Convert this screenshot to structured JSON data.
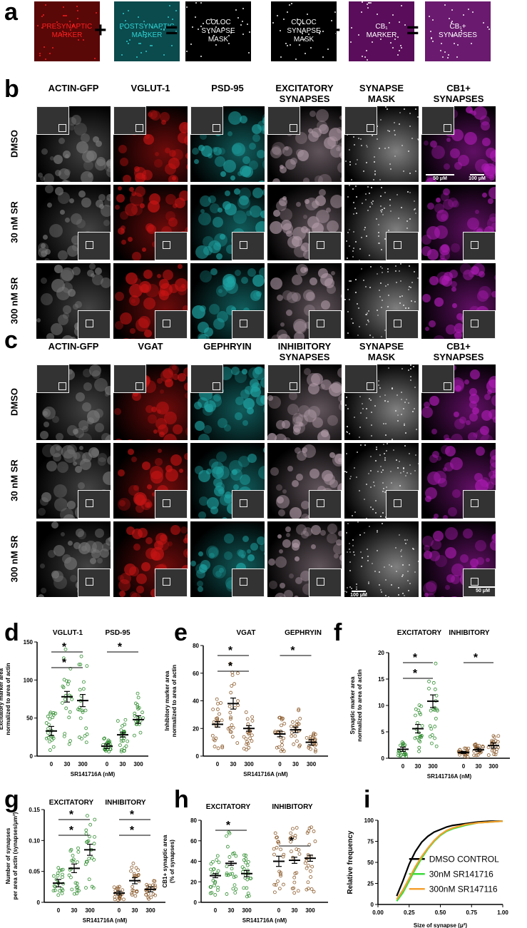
{
  "figure": {
    "panel_labels": {
      "a": "a",
      "b": "b",
      "c": "c",
      "d": "d",
      "e": "e",
      "f": "f",
      "g": "g",
      "h": "h",
      "i": "i"
    },
    "a": {
      "tiles": [
        {
          "text": "PRESYNAPTIC\nMARKER",
          "color": "#ff2020",
          "bg": "#5a0707"
        },
        {
          "text": "POSTSYNAPTIC\nMARKER",
          "color": "#2fd3d3",
          "bg": "#0b4a4d"
        },
        {
          "text": "COLOC\nSYNAPSE\nMASK",
          "color": "#ffffff",
          "bg": "#000000"
        },
        {
          "text": "COLOC\nSYNAPSE\nMASK",
          "color": "#ffffff",
          "bg": "#000000"
        },
        {
          "text": "CB₁\nMARKER",
          "color": "#ffffff",
          "bg": "#5a0d5a"
        },
        {
          "text": "CB₁+\nSYNAPSES",
          "color": "#ffffff",
          "bg": "#6a1a6f"
        }
      ],
      "ops": [
        "+",
        "=",
        "+",
        "="
      ]
    },
    "b": {
      "columns": [
        "ACTIN-GFP",
        "VGLUT-1",
        "PSD-95",
        "EXCITATORY\nSYNAPSES",
        "SYNAPSE\nMASK",
        "CB1+\nSYNAPSES"
      ],
      "rows": [
        "DMSO",
        "30 nM SR",
        "300 nM SR"
      ],
      "scale_50": "50 μM",
      "scale_100": "100 μM"
    },
    "c": {
      "columns": [
        "ACTIN-GFP",
        "VGAT",
        "GEPHRYIN",
        "INHIBITORY\nSYNAPSES",
        "SYNAPSE\nMASK",
        "CB1+\nSYNAPSES"
      ],
      "rows": [
        "DMSO",
        "30 nM SR",
        "300 nM SR"
      ],
      "scale_50": "50 μM",
      "scale_100": "100 μM"
    },
    "channel_colors": {
      "gray": "#7a7a7a",
      "red": "#c81414",
      "cyan": "#1fa5a5",
      "merge": "#b09aa6",
      "mask": "#e8e8e8",
      "magenta": "#b01cb7"
    }
  },
  "chart_data": [
    {
      "id": "d",
      "type": "scatter",
      "ylabel": "Excitatory marker area\nnormalized to area of actin",
      "xlabel": "SR141716A (nM)",
      "ylim": [
        0,
        150
      ],
      "yticks": [
        0,
        50,
        100,
        150
      ],
      "groups": [
        {
          "name": "VGLUT-1",
          "categories": [
            "0",
            "30",
            "300"
          ],
          "means": [
            33,
            78,
            73
          ],
          "sem": [
            6,
            7,
            8
          ],
          "color": "#2e8b2e"
        },
        {
          "name": "PSD-95",
          "categories": [
            "0",
            "30",
            "300"
          ],
          "means": [
            13,
            28,
            48
          ],
          "sem": [
            3,
            3,
            5
          ],
          "color": "#2e8b2e"
        }
      ],
      "significance": [
        "*",
        "*",
        "*"
      ]
    },
    {
      "id": "e",
      "type": "scatter",
      "ylabel": "Inhibitory marker area\nnormalized to area of actin",
      "xlabel": "SR141716A (nM)",
      "ylim": [
        0,
        80
      ],
      "yticks": [
        0,
        20,
        40,
        60,
        80
      ],
      "groups": [
        {
          "name": "VGAT",
          "categories": [
            "0",
            "30",
            "300"
          ],
          "means": [
            23,
            38,
            20
          ],
          "sem": [
            2,
            4,
            2
          ],
          "color": "#8b5a2b"
        },
        {
          "name": "GEPHRYIN",
          "categories": [
            "0",
            "30",
            "300"
          ],
          "means": [
            16,
            19,
            10
          ],
          "sem": [
            2,
            2,
            2
          ],
          "color": "#8b5a2b"
        }
      ],
      "significance": [
        "*",
        "*",
        "*"
      ]
    },
    {
      "id": "f",
      "type": "scatter",
      "ylabel": "Synaptic marker area\nnormalized to area of actin",
      "xlabel": "SR141716A (nM)",
      "ylim": [
        0,
        20
      ],
      "yticks": [
        0,
        5,
        10,
        15,
        20
      ],
      "groups": [
        {
          "name": "EXCITATORY",
          "categories": [
            "0",
            "30",
            "300"
          ],
          "means": [
            1.7,
            5.6,
            10.8
          ],
          "sem": [
            0.4,
            0.8,
            1.2
          ],
          "color": "#2e8b2e"
        },
        {
          "name": "INHIBITORY",
          "categories": [
            "0",
            "30",
            "300"
          ],
          "means": [
            1.1,
            1.6,
            2.4
          ],
          "sem": [
            0.2,
            0.3,
            0.5
          ],
          "color": "#8b5a2b"
        }
      ],
      "significance": [
        "*",
        "*",
        "*"
      ]
    },
    {
      "id": "g",
      "type": "scatter",
      "ylabel": "Number of synapses\nper area of actin (synapses/μm²)",
      "xlabel": "SR141716A (nM)",
      "ylim": [
        0,
        0.15
      ],
      "yticks": [
        "0",
        "0.05",
        "0.10",
        "0.15"
      ],
      "groups": [
        {
          "name": "EXCITATORY",
          "categories": [
            "0",
            "30",
            "300"
          ],
          "means": [
            0.031,
            0.055,
            0.085
          ],
          "sem": [
            0.006,
            0.007,
            0.009
          ],
          "color": "#2e8b2e"
        },
        {
          "name": "INHIBITORY",
          "categories": [
            "0",
            "30",
            "300"
          ],
          "means": [
            0.015,
            0.035,
            0.021
          ],
          "sem": [
            0.003,
            0.005,
            0.004
          ],
          "color": "#8b5a2b"
        }
      ],
      "significance": [
        "*",
        "*",
        "*",
        "*"
      ]
    },
    {
      "id": "h",
      "type": "scatter",
      "ylabel": "CB1+ synaptic area\n(% of synapses)",
      "xlabel": "SR141716A (nM)",
      "ylim": [
        0,
        80
      ],
      "yticks": [
        0,
        20,
        40,
        60,
        80
      ],
      "groups": [
        {
          "name": "EXCITATORY",
          "categories": [
            "0",
            "30",
            "300"
          ],
          "means": [
            26,
            38,
            28
          ],
          "sem": [
            2,
            2,
            3
          ],
          "color": "#2e8b2e"
        },
        {
          "name": "INHIBITORY",
          "categories": [
            "0",
            "30",
            "300"
          ],
          "means": [
            40,
            41,
            43
          ],
          "sem": [
            5,
            3,
            3
          ],
          "color": "#8b5a2b"
        }
      ],
      "significance": [
        "*",
        "*"
      ]
    },
    {
      "id": "i",
      "type": "line",
      "ylabel": "Relative frequency",
      "xlabel": "Size of synapse (μ²)",
      "xlim": [
        0,
        1
      ],
      "ylim": [
        0,
        100
      ],
      "xticks": [
        "0.00",
        "0.25",
        "0.50",
        "0.75",
        "1.00"
      ],
      "yticks": [
        0,
        25,
        50,
        75,
        100
      ],
      "series": [
        {
          "name": "DMSO CONTROL",
          "color": "#000000",
          "x": [
            0.15,
            0.2,
            0.25,
            0.3,
            0.35,
            0.4,
            0.45,
            0.5,
            0.55,
            0.6,
            0.7,
            0.8,
            0.9,
            1.0
          ],
          "y": [
            10,
            28,
            48,
            63,
            74,
            81,
            86,
            89,
            92,
            94,
            96,
            98,
            99,
            99
          ]
        },
        {
          "name": "30nM SR141716",
          "color": "#3ddc3d",
          "x": [
            0.15,
            0.2,
            0.25,
            0.3,
            0.35,
            0.4,
            0.45,
            0.5,
            0.55,
            0.6,
            0.7,
            0.8,
            0.9,
            1.0
          ],
          "y": [
            4,
            14,
            28,
            42,
            55,
            66,
            75,
            82,
            87,
            90,
            94,
            97,
            98,
            99
          ]
        },
        {
          "name": "300nM SR147116",
          "color": "#f5a030",
          "x": [
            0.15,
            0.2,
            0.25,
            0.3,
            0.35,
            0.4,
            0.45,
            0.5,
            0.55,
            0.6,
            0.7,
            0.8,
            0.9,
            1.0
          ],
          "y": [
            6,
            17,
            31,
            45,
            57,
            67,
            76,
            83,
            88,
            91,
            95,
            97,
            98,
            99
          ]
        }
      ]
    }
  ]
}
